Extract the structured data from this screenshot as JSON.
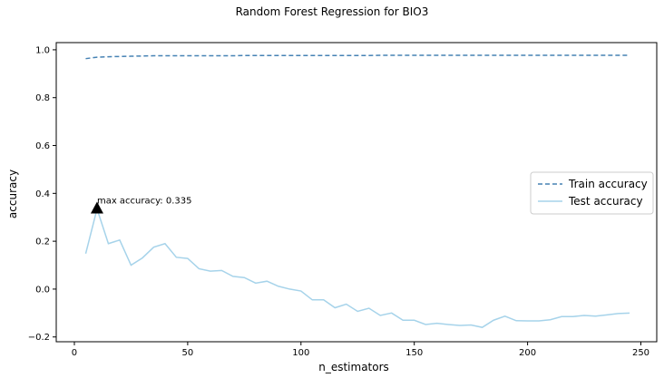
{
  "chart_data": {
    "type": "line",
    "title": "Random Forest Regression for BIO3",
    "xlabel": "n_estimators",
    "ylabel": "accuracy",
    "xlim": [
      -8,
      257
    ],
    "ylim": [
      -0.22,
      1.03
    ],
    "xticks": [
      0,
      50,
      100,
      150,
      200,
      250
    ],
    "yticks": [
      -0.2,
      0.0,
      0.2,
      0.4,
      0.6,
      0.8,
      1.0
    ],
    "xtick_labels": [
      "0",
      "50",
      "100",
      "150",
      "200",
      "250"
    ],
    "ytick_labels": [
      "−0.2",
      "0.0",
      "0.2",
      "0.4",
      "0.6",
      "0.8",
      "1.0"
    ],
    "grid": false,
    "legend_position": "center-right",
    "x": [
      5,
      10,
      15,
      20,
      25,
      30,
      35,
      40,
      45,
      50,
      55,
      60,
      65,
      70,
      75,
      80,
      85,
      90,
      95,
      100,
      105,
      110,
      115,
      120,
      125,
      130,
      135,
      140,
      145,
      150,
      155,
      160,
      165,
      170,
      175,
      180,
      185,
      190,
      195,
      200,
      205,
      210,
      215,
      220,
      225,
      230,
      235,
      240,
      245
    ],
    "series": [
      {
        "name": "Train accuracy",
        "color": "#4682b4",
        "linestyle": "dashed",
        "values": [
          0.963,
          0.969,
          0.971,
          0.972,
          0.973,
          0.974,
          0.975,
          0.975,
          0.975,
          0.975,
          0.975,
          0.975,
          0.975,
          0.975,
          0.976,
          0.976,
          0.976,
          0.976,
          0.976,
          0.976,
          0.976,
          0.976,
          0.976,
          0.976,
          0.976,
          0.976,
          0.977,
          0.977,
          0.977,
          0.977,
          0.977,
          0.977,
          0.977,
          0.977,
          0.977,
          0.977,
          0.977,
          0.977,
          0.977,
          0.977,
          0.977,
          0.977,
          0.977,
          0.977,
          0.977,
          0.977,
          0.977,
          0.977,
          0.977
        ]
      },
      {
        "name": "Test accuracy",
        "color": "#a6d3ea",
        "linestyle": "solid",
        "values": [
          0.148,
          0.335,
          0.19,
          0.205,
          0.1,
          0.13,
          0.175,
          0.19,
          0.133,
          0.128,
          0.085,
          0.075,
          0.078,
          0.053,
          0.048,
          0.025,
          0.033,
          0.012,
          0.0,
          -0.008,
          -0.045,
          -0.045,
          -0.078,
          -0.063,
          -0.093,
          -0.08,
          -0.11,
          -0.1,
          -0.13,
          -0.13,
          -0.148,
          -0.143,
          -0.148,
          -0.152,
          -0.15,
          -0.16,
          -0.13,
          -0.113,
          -0.132,
          -0.133,
          -0.133,
          -0.128,
          -0.115,
          -0.115,
          -0.11,
          -0.113,
          -0.108,
          -0.102,
          -0.1
        ]
      }
    ],
    "annotation": {
      "text": "max accuracy: 0.335",
      "x": 10,
      "y": 0.335,
      "marker": "triangle",
      "marker_color": "#000000"
    }
  }
}
